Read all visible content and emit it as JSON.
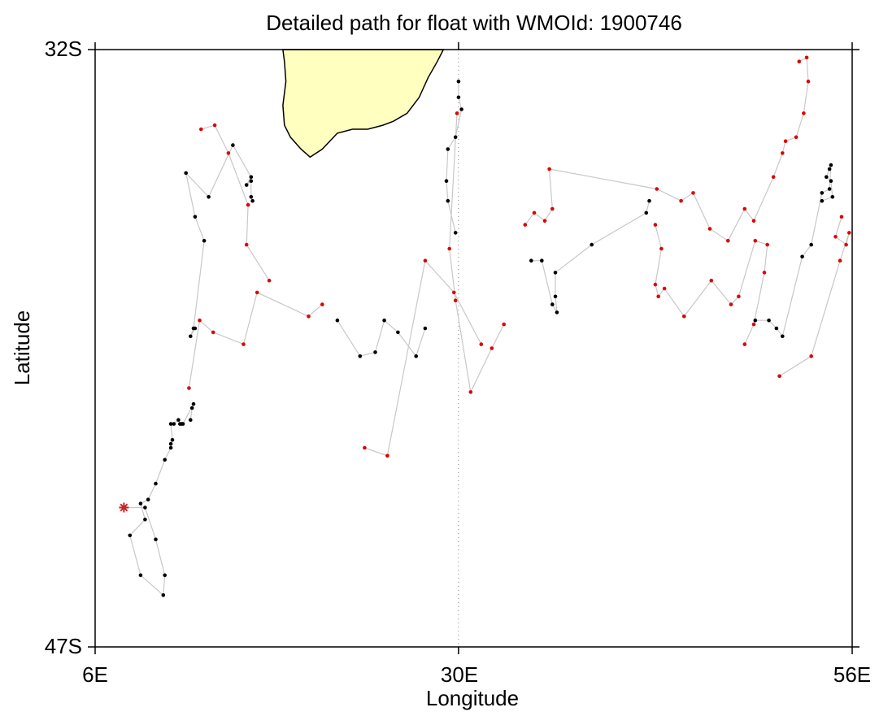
{
  "title": "Detailed path for float with WMOId: 1900746",
  "axes": {
    "xlabel": "Longitude",
    "ylabel": "Latitude",
    "xticks": [
      {
        "value": 6,
        "label": "6E"
      },
      {
        "value": 30,
        "label": "30E"
      },
      {
        "value": 56,
        "label": "56E"
      }
    ],
    "yticks": [
      {
        "value": -32,
        "label": "32S"
      },
      {
        "value": -47,
        "label": "47S"
      }
    ]
  },
  "colors": {
    "land": "#ffffc0",
    "path": "#c8c8c8",
    "point_black": "#000000",
    "point_red": "#e00000",
    "start_marker": "#cc2222",
    "reference_line": "#888888"
  },
  "chart_data": {
    "type": "scatter",
    "title": "Detailed path for float with WMOId: 1900746",
    "xlabel": "Longitude",
    "ylabel": "Latitude",
    "xlim": [
      6,
      56
    ],
    "ylim": [
      -47,
      -32
    ],
    "reference_line_lon": 30,
    "start_marker_symbol": "asterisk",
    "start": [
      7.9,
      -43.5
    ],
    "land_coastline": [
      [
        18.4,
        -32
      ],
      [
        18.5,
        -32.3
      ],
      [
        18.6,
        -32.8
      ],
      [
        18.4,
        -33.4
      ],
      [
        18.5,
        -33.9
      ],
      [
        18.9,
        -34.2
      ],
      [
        19.6,
        -34.5
      ],
      [
        20.2,
        -34.7
      ],
      [
        21.0,
        -34.5
      ],
      [
        22.0,
        -34.1
      ],
      [
        23.0,
        -34.0
      ],
      [
        24.0,
        -34.0
      ],
      [
        25.0,
        -33.9
      ],
      [
        25.7,
        -33.8
      ],
      [
        26.6,
        -33.6
      ],
      [
        27.4,
        -33.2
      ],
      [
        28.0,
        -32.7
      ],
      [
        28.6,
        -32.3
      ],
      [
        29.0,
        -32
      ]
    ],
    "tracks": [
      {
        "color": "black",
        "points": [
          [
            12.3,
            -41.3
          ],
          [
            12.4,
            -41.0
          ],
          [
            12.5,
            -40.9
          ],
          [
            11.8,
            -41.4
          ],
          [
            11.7,
            -41.4
          ],
          [
            11.6,
            -41.4
          ],
          [
            11.5,
            -41.3
          ],
          [
            11.2,
            -41.4
          ],
          [
            11.0,
            -41.4
          ],
          [
            11.1,
            -41.8
          ],
          [
            11.0,
            -41.9
          ],
          [
            11.0,
            -42.0
          ],
          [
            10.6,
            -42.3
          ],
          [
            10.0,
            -42.9
          ],
          [
            9.5,
            -43.3
          ],
          [
            9.0,
            -43.4
          ],
          [
            9.3,
            -43.8
          ],
          [
            8.3,
            -44.2
          ],
          [
            9.0,
            -45.2
          ],
          [
            10.5,
            -45.7
          ],
          [
            10.6,
            -45.2
          ],
          [
            10.0,
            -44.3
          ],
          [
            9.3,
            -43.5
          ],
          [
            7.9,
            -43.5
          ]
        ]
      },
      {
        "color": "red",
        "points": [
          [
            12.2,
            -40.5
          ],
          [
            12.9,
            -38.8
          ],
          [
            13.8,
            -39.1
          ],
          [
            15.8,
            -39.4
          ],
          [
            16.7,
            -38.1
          ],
          [
            20.1,
            -38.7
          ],
          [
            21.0,
            -38.4
          ]
        ]
      },
      {
        "color": "black",
        "points": [
          [
            12.6,
            -39.0
          ],
          [
            12.3,
            -39.2
          ],
          [
            12.5,
            -39.0
          ],
          [
            13.2,
            -36.8
          ],
          [
            12.6,
            -36.2
          ],
          [
            12.0,
            -35.1
          ],
          [
            13.5,
            -35.7
          ],
          [
            15.1,
            -34.4
          ],
          [
            16.3,
            -35.2
          ],
          [
            16.0,
            -35.4
          ],
          [
            16.3,
            -35.3
          ],
          [
            16.3,
            -35.7
          ],
          [
            16.4,
            -35.8
          ]
        ]
      },
      {
        "color": "red",
        "points": [
          [
            13.0,
            -34.0
          ],
          [
            13.9,
            -33.9
          ],
          [
            14.8,
            -34.6
          ],
          [
            16.1,
            -35.9
          ],
          [
            16.0,
            -36.9
          ],
          [
            17.5,
            -37.8
          ]
        ]
      },
      {
        "color": "black",
        "points": [
          [
            22.0,
            -38.8
          ],
          [
            23.5,
            -39.7
          ],
          [
            24.5,
            -39.6
          ],
          [
            25.1,
            -38.8
          ],
          [
            26.0,
            -39.1
          ],
          [
            27.2,
            -39.7
          ],
          [
            27.8,
            -39.0
          ]
        ]
      },
      {
        "color": "red",
        "points": [
          [
            23.8,
            -42.0
          ],
          [
            25.3,
            -42.2
          ],
          [
            27.8,
            -37.3
          ],
          [
            29.7,
            -38.1
          ],
          [
            31.5,
            -39.4
          ]
        ]
      },
      {
        "color": "black",
        "points": [
          [
            29.8,
            -36.6
          ],
          [
            29.3,
            -35.8
          ],
          [
            29.2,
            -35.3
          ],
          [
            29.3,
            -34.5
          ],
          [
            29.8,
            -34.2
          ],
          [
            30.2,
            -33.5
          ],
          [
            30.0,
            -33.2
          ],
          [
            30.0,
            -32.8
          ]
        ]
      },
      {
        "color": "red",
        "points": [
          [
            29.9,
            -33.6
          ],
          [
            29.4,
            -37.0
          ],
          [
            29.8,
            -38.3
          ],
          [
            30.8,
            -40.6
          ],
          [
            32.2,
            -39.5
          ],
          [
            33.0,
            -38.9
          ]
        ]
      },
      {
        "color": "black",
        "points": [
          [
            34.8,
            -37.3
          ],
          [
            35.5,
            -37.3
          ],
          [
            36.2,
            -38.4
          ],
          [
            36.5,
            -38.6
          ],
          [
            36.4,
            -38.2
          ],
          [
            36.4,
            -37.6
          ],
          [
            38.8,
            -36.9
          ],
          [
            42.4,
            -36.1
          ],
          [
            42.6,
            -35.8
          ]
        ]
      },
      {
        "color": "red",
        "points": [
          [
            34.4,
            -36.4
          ],
          [
            35.0,
            -36.1
          ],
          [
            35.7,
            -36.3
          ],
          [
            36.2,
            -36.0
          ],
          [
            36.0,
            -35.0
          ],
          [
            43.1,
            -35.5
          ],
          [
            44.7,
            -35.8
          ],
          [
            45.5,
            -35.6
          ],
          [
            46.6,
            -36.5
          ],
          [
            47.8,
            -36.8
          ],
          [
            48.9,
            -36.0
          ],
          [
            49.5,
            -36.3
          ],
          [
            50.8,
            -35.2
          ],
          [
            51.4,
            -34.6
          ],
          [
            51.6,
            -34.3
          ],
          [
            52.3,
            -34.2
          ],
          [
            52.8,
            -33.6
          ],
          [
            53.1,
            -32.8
          ],
          [
            53.0,
            -32.2
          ],
          [
            52.5,
            -32.3
          ]
        ]
      },
      {
        "color": "red",
        "points": [
          [
            43.0,
            -36.4
          ],
          [
            43.4,
            -37.0
          ],
          [
            43.0,
            -37.9
          ],
          [
            43.2,
            -38.2
          ],
          [
            43.6,
            -38.0
          ],
          [
            44.9,
            -38.7
          ],
          [
            46.7,
            -37.8
          ],
          [
            48.0,
            -38.4
          ],
          [
            48.5,
            -38.2
          ],
          [
            49.6,
            -36.8
          ],
          [
            50.4,
            -36.9
          ],
          [
            50.2,
            -37.6
          ],
          [
            49.5,
            -38.9
          ],
          [
            48.9,
            -39.4
          ]
        ]
      },
      {
        "color": "black",
        "points": [
          [
            49.6,
            -38.8
          ],
          [
            50.5,
            -38.8
          ],
          [
            51.0,
            -39.0
          ],
          [
            51.4,
            -39.2
          ],
          [
            52.7,
            -37.2
          ],
          [
            53.3,
            -36.9
          ],
          [
            54.0,
            -35.6
          ],
          [
            54.5,
            -35.5
          ],
          [
            54.6,
            -34.9
          ],
          [
            54.5,
            -35.0
          ],
          [
            54.3,
            -35.2
          ],
          [
            54.6,
            -35.3
          ],
          [
            54.7,
            -35.7
          ],
          [
            54.0,
            -35.8
          ]
        ]
      },
      {
        "color": "red",
        "points": [
          [
            55.3,
            -36.2
          ],
          [
            54.9,
            -36.7
          ],
          [
            55.6,
            -36.9
          ],
          [
            55.8,
            -36.6
          ],
          [
            55.2,
            -37.3
          ],
          [
            53.3,
            -39.7
          ],
          [
            51.2,
            -40.2
          ]
        ]
      }
    ]
  }
}
